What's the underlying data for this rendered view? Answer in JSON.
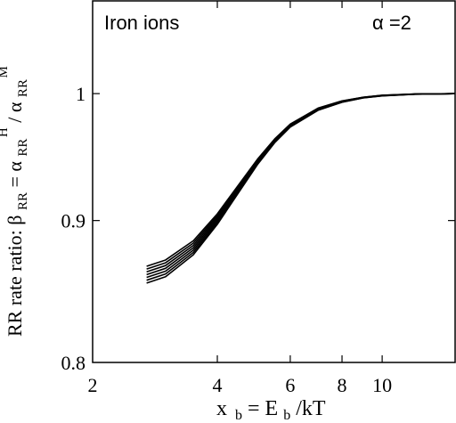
{
  "chart_data": {
    "type": "line",
    "annotation": "Iron  ions",
    "alpha_label": "α =2",
    "x_axis": {
      "label_main": "x",
      "label_sub": "b",
      "label_eq": " = E",
      "label_sub2": "b",
      "label_tail": "/kT",
      "scale": "log",
      "range": [
        2,
        15
      ],
      "ticks": [
        2,
        4,
        6,
        8,
        10
      ],
      "tick_labels": [
        "2",
        "4",
        "6",
        "8",
        "10"
      ]
    },
    "y_axis": {
      "label_prefix": "RR rate ratio:  ",
      "beta": "β",
      "beta_sub": "RR",
      "eq": " = ",
      "alpha1": "α",
      "alpha1_sub": "RR",
      "alpha1_sup": "H",
      "slash": "/",
      "alpha2": "α",
      "alpha2_sub": "RR",
      "alpha2_sup": "M",
      "scale": "log",
      "range": [
        0.8,
        1.08
      ],
      "ticks": [
        0.8,
        0.9,
        1.0
      ],
      "tick_labels": [
        "0.8",
        "0.9",
        "1"
      ]
    },
    "grid": false,
    "series": [
      {
        "values": [
          [
            2.7,
            0.8665
          ],
          [
            3.0,
            0.871
          ],
          [
            3.5,
            0.885
          ],
          [
            4.0,
            0.905
          ],
          [
            4.5,
            0.927
          ],
          [
            5.0,
            0.947
          ],
          [
            5.5,
            0.963
          ],
          [
            6.0,
            0.975
          ],
          [
            7.0,
            0.988
          ],
          [
            8.0,
            0.994
          ],
          [
            9.0,
            0.997
          ],
          [
            10.0,
            0.9987
          ],
          [
            12.0,
            0.9997
          ],
          [
            15.0,
            1.0
          ]
        ]
      },
      {
        "values": [
          [
            2.7,
            0.8645
          ],
          [
            3.0,
            0.869
          ],
          [
            3.5,
            0.8833
          ],
          [
            4.0,
            0.9037
          ],
          [
            4.5,
            0.926
          ],
          [
            5.0,
            0.9463
          ],
          [
            5.5,
            0.9625
          ],
          [
            6.0,
            0.9746
          ],
          [
            7.0,
            0.9877
          ],
          [
            8.0,
            0.9938
          ],
          [
            9.0,
            0.9969
          ],
          [
            10.0,
            0.9986
          ],
          [
            12.0,
            0.9997
          ],
          [
            15.0,
            1.0
          ]
        ]
      },
      {
        "values": [
          [
            2.7,
            0.8625
          ],
          [
            3.0,
            0.867
          ],
          [
            3.5,
            0.8816
          ],
          [
            4.0,
            0.9024
          ],
          [
            4.5,
            0.925
          ],
          [
            5.0,
            0.9456
          ],
          [
            5.5,
            0.962
          ],
          [
            6.0,
            0.9742
          ],
          [
            7.0,
            0.9874
          ],
          [
            8.0,
            0.9936
          ],
          [
            9.0,
            0.9968
          ],
          [
            10.0,
            0.9985
          ],
          [
            12.0,
            0.9996
          ],
          [
            15.0,
            1.0
          ]
        ]
      },
      {
        "values": [
          [
            2.7,
            0.8605
          ],
          [
            3.0,
            0.865
          ],
          [
            3.5,
            0.8799
          ],
          [
            4.0,
            0.9011
          ],
          [
            4.5,
            0.924
          ],
          [
            5.0,
            0.9449
          ],
          [
            5.5,
            0.9615
          ],
          [
            6.0,
            0.9738
          ],
          [
            7.0,
            0.9871
          ],
          [
            8.0,
            0.9934
          ],
          [
            9.0,
            0.9967
          ],
          [
            10.0,
            0.9984
          ],
          [
            12.0,
            0.9996
          ],
          [
            15.0,
            1.0
          ]
        ]
      },
      {
        "values": [
          [
            2.7,
            0.8585
          ],
          [
            3.0,
            0.863
          ],
          [
            3.5,
            0.8782
          ],
          [
            4.0,
            0.8998
          ],
          [
            4.5,
            0.923
          ],
          [
            5.0,
            0.9442
          ],
          [
            5.5,
            0.961
          ],
          [
            6.0,
            0.9734
          ],
          [
            7.0,
            0.9868
          ],
          [
            8.0,
            0.9932
          ],
          [
            9.0,
            0.9966
          ],
          [
            10.0,
            0.9983
          ],
          [
            12.0,
            0.9996
          ],
          [
            15.0,
            1.0
          ]
        ]
      },
      {
        "values": [
          [
            2.7,
            0.8565
          ],
          [
            3.0,
            0.861
          ],
          [
            3.5,
            0.8765
          ],
          [
            4.0,
            0.8985
          ],
          [
            4.5,
            0.922
          ],
          [
            5.0,
            0.9435
          ],
          [
            5.5,
            0.9605
          ],
          [
            6.0,
            0.973
          ],
          [
            7.0,
            0.9865
          ],
          [
            8.0,
            0.993
          ],
          [
            9.0,
            0.9965
          ],
          [
            10.0,
            0.9982
          ],
          [
            12.0,
            0.9995
          ],
          [
            15.0,
            1.0
          ]
        ]
      },
      {
        "values": [
          [
            2.7,
            0.8545
          ],
          [
            3.0,
            0.859
          ],
          [
            3.5,
            0.8748
          ],
          [
            4.0,
            0.8972
          ],
          [
            4.5,
            0.921
          ],
          [
            5.0,
            0.9428
          ],
          [
            5.5,
            0.96
          ],
          [
            6.0,
            0.9726
          ],
          [
            7.0,
            0.9862
          ],
          [
            8.0,
            0.9928
          ],
          [
            9.0,
            0.9964
          ],
          [
            10.0,
            0.9981
          ],
          [
            12.0,
            0.9995
          ],
          [
            15.0,
            1.0
          ]
        ]
      }
    ]
  }
}
